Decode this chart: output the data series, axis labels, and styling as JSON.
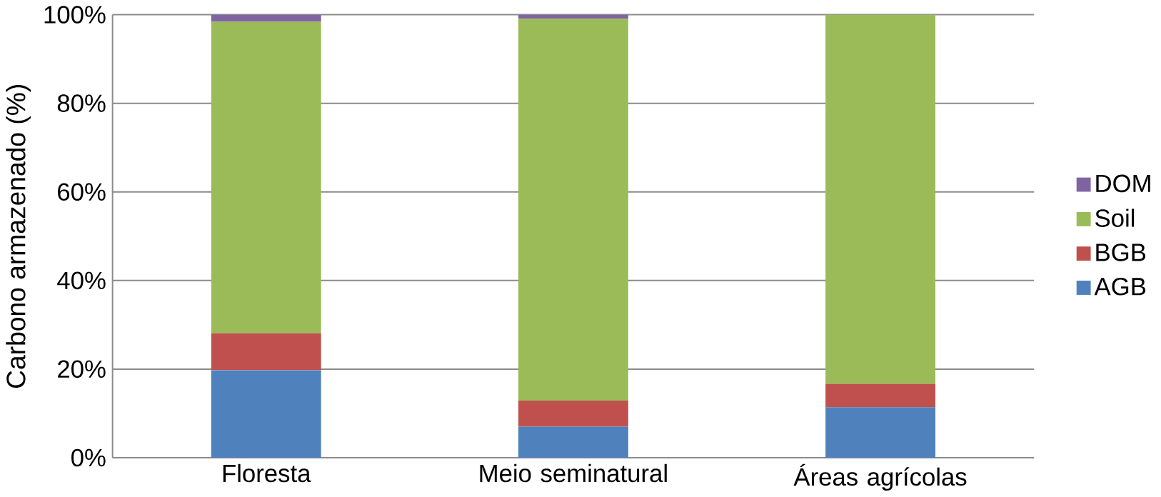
{
  "chart_data": {
    "type": "bar",
    "stacked": true,
    "ylabel": "Carbono armazenado (%)",
    "categories": [
      "Floresta",
      "Meio seminatural",
      "Áreas agrícolas"
    ],
    "series": [
      {
        "name": "AGB",
        "color": "#4f81bd",
        "values": [
          19.8,
          7.0,
          11.4
        ]
      },
      {
        "name": "BGB",
        "color": "#c0504d",
        "values": [
          8.3,
          5.9,
          5.3
        ]
      },
      {
        "name": "Soil",
        "color": "#9bbb59",
        "values": [
          70.3,
          86.2,
          83.3
        ]
      },
      {
        "name": "DOM",
        "color": "#8064a2",
        "values": [
          1.6,
          0.9,
          0
        ]
      }
    ],
    "ylim": [
      0,
      100
    ],
    "yticks": [
      {
        "value": 0,
        "label": "0%"
      },
      {
        "value": 20,
        "label": "20%"
      },
      {
        "value": 40,
        "label": "40%"
      },
      {
        "value": 60,
        "label": "60%"
      },
      {
        "value": 80,
        "label": "80%"
      },
      {
        "value": 100,
        "label": "100%"
      }
    ],
    "grid": "y",
    "legend": "right"
  }
}
